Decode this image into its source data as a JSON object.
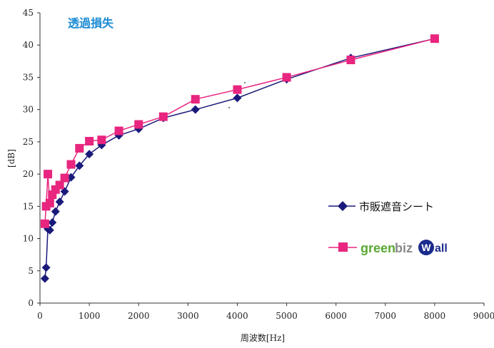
{
  "chart_data": {
    "type": "line",
    "title": "透過損失",
    "xlabel": "周波数[Hz]",
    "ylabel": "[dB]",
    "xlim": [
      0,
      9000
    ],
    "ylim": [
      0,
      45
    ],
    "xticks": [
      0,
      1000,
      2000,
      3000,
      4000,
      5000,
      6000,
      7000,
      8000,
      9000
    ],
    "yticks": [
      0,
      5,
      10,
      15,
      20,
      25,
      30,
      35,
      40,
      45
    ],
    "grid": false,
    "legend_position": "right",
    "series": [
      {
        "name": "市販遮音シート",
        "color": "#1a1a7a",
        "marker": "diamond",
        "x": [
          100,
          125,
          160,
          200,
          250,
          315,
          400,
          500,
          630,
          800,
          1000,
          1250,
          1600,
          2000,
          2500,
          3150,
          4000,
          5000,
          6300,
          8000
        ],
        "y": [
          3.8,
          5.5,
          11.5,
          11.3,
          12.5,
          14.2,
          15.7,
          17.3,
          19.5,
          21.3,
          23.1,
          24.5,
          26.0,
          27.0,
          28.7,
          30.0,
          31.8,
          34.7,
          38.0,
          41.0
        ]
      },
      {
        "name": "greenbiz Wall",
        "color": "#e8257f",
        "marker": "square",
        "x": [
          100,
          125,
          160,
          200,
          250,
          315,
          400,
          500,
          630,
          800,
          1000,
          1250,
          1600,
          2000,
          2500,
          3150,
          4000,
          5000,
          6300,
          8000
        ],
        "y": [
          12.3,
          15.0,
          20.0,
          15.5,
          16.8,
          17.6,
          18.3,
          19.4,
          21.5,
          24.0,
          25.1,
          25.3,
          26.7,
          27.7,
          28.9,
          31.6,
          33.1,
          35.0,
          37.7,
          41.0
        ]
      }
    ]
  },
  "legend": {
    "item1_label": "市販遮音シート",
    "logo_green": "green",
    "logo_gray": "biz",
    "logo_w": "W",
    "logo_all": "all"
  }
}
